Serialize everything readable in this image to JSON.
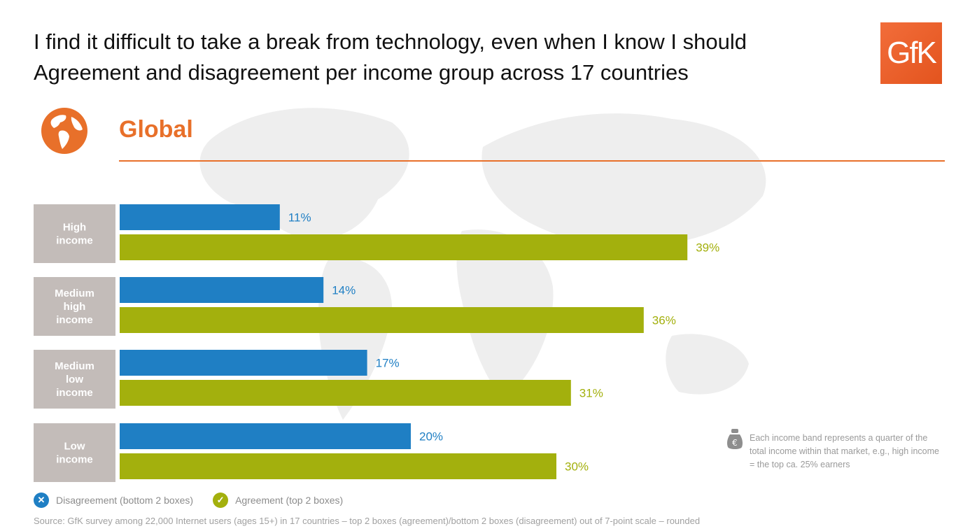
{
  "header": {
    "title_line1": "I find it difficult to take a break from technology,  even when I know I should",
    "title_line2": "Agreement  and  disagreement  per income group across 17 countries",
    "logo_text": "GfK",
    "region": "Global"
  },
  "colors": {
    "disagreement": "#1f7fc4",
    "agreement": "#a3b00d",
    "category_box": "#c3bcb9",
    "accent": "#e8702a"
  },
  "chart_data": {
    "type": "bar",
    "orientation": "horizontal",
    "categories": [
      [
        "High",
        "income"
      ],
      [
        "Medium",
        "high",
        "income"
      ],
      [
        "Medium",
        "low",
        "income"
      ],
      [
        "Low",
        "income"
      ]
    ],
    "series": [
      {
        "name": "Disagreement  (bottom 2 boxes)",
        "values": [
          11,
          14,
          17,
          20
        ],
        "labels": [
          "11%",
          "14%",
          "17%",
          "20%"
        ]
      },
      {
        "name": "Agreement  (top 2 boxes)",
        "values": [
          39,
          36,
          31,
          30
        ],
        "labels": [
          "39%",
          "36%",
          "31%",
          "30%"
        ]
      }
    ],
    "value_unit": "%",
    "legend_position": "bottom-left",
    "grid": false
  },
  "legend": {
    "disagreement_label": "Disagreement  (bottom 2 boxes)",
    "agreement_label": "Agreement  (top 2 boxes)",
    "disagreement_icon": "x-icon",
    "agreement_icon": "check-icon"
  },
  "note": {
    "icon": "money-bag-icon",
    "text": "Each income band represents a quarter of the total income within that market, e.g., high income = the top ca. 25% earners"
  },
  "footer": {
    "source": "Source:  GfK survey among 22,000  Internet  users (ages 15+) in 17 countries – top 2 boxes (agreement)/bottom  2 boxes (disagreement)  out of 7-point  scale – rounded"
  }
}
